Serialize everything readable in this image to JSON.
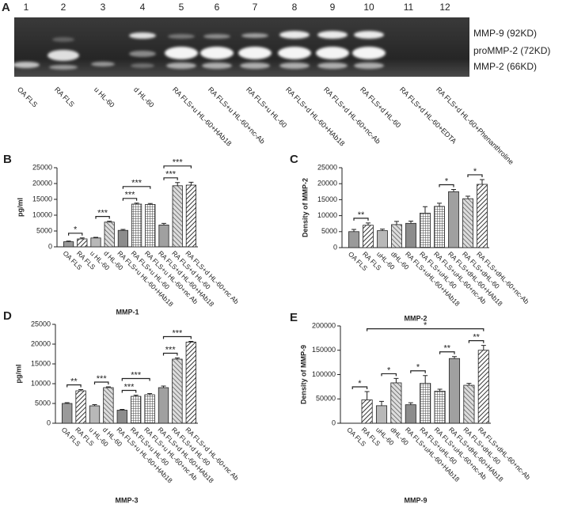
{
  "panel_a": {
    "label": "A",
    "lanes": [
      "1",
      "2",
      "3",
      "4",
      "5",
      "6",
      "7",
      "8",
      "9",
      "10",
      "11",
      "12"
    ],
    "bands": [
      "MMP-9 (92KD)",
      "proMMP-2 (72KD)",
      "MMP-2 (66KD)"
    ],
    "lane_labels": [
      "OA FLS",
      "RA FLS",
      "u HL-60",
      "d HL-60",
      "RA FLS+u HL-60+HAb18",
      "RA FLS+u HL-60+nc-Ab",
      "RA FLS+u HL-60",
      "RA FLS+d HL-60+HAb18",
      "RA FLS+d HL-60+nc-Ab",
      "RA FLS+d HL-60",
      "RA FLS+d HL-60+EDTA",
      "RA FLS+d HL-60+Phenanthroline"
    ]
  },
  "chart_data": [
    {
      "type": "bar",
      "label": "B",
      "ylabel": "pg/ml",
      "xlabel": "MMP-1",
      "categories": [
        "OA FLS",
        "RA FLS",
        "u HL-60",
        "d HL-60",
        "RA FLS+u HL-60+HAb18",
        "RA FLS+u HL-60",
        "RA FLS+u HL-60+nc Ab",
        "RA FLS+d HL-60+HAb18",
        "RA FLS+d HL-60",
        "RA FLS+d HL-60+nc Ab"
      ],
      "values": [
        1600,
        2500,
        2800,
        7800,
        5200,
        13500,
        13400,
        6900,
        19300,
        19500
      ],
      "errors": [
        200,
        300,
        200,
        300,
        300,
        300,
        300,
        500,
        1000,
        900
      ],
      "ylim": [
        0,
        25000
      ],
      "yticks": [
        0,
        5000,
        10000,
        15000,
        20000,
        25000
      ],
      "annotations": [
        {
          "text": "*",
          "from": 0,
          "to": 1
        },
        {
          "text": "***",
          "from": 2,
          "to": 3
        },
        {
          "text": "***",
          "from": 4,
          "to": 5
        },
        {
          "text": "***",
          "from": 4,
          "to": 6
        },
        {
          "text": "***",
          "from": 7,
          "to": 8
        },
        {
          "text": "***",
          "from": 7,
          "to": 9
        }
      ]
    },
    {
      "type": "bar",
      "label": "C",
      "ylabel": "Density of MMP-2",
      "xlabel": "MMP-2",
      "categories": [
        "OA FLS",
        "RA FLS",
        "uHL-60",
        "dHL-60",
        "RA FLS+uHL-60+HAb18",
        "RA FLS+uHL-60",
        "RA FLS+uHL-60+nc-Ab",
        "RA FLS+dHL-60+HAb18",
        "RA FLS+dHL-60",
        "RA FLS+dHL-60+nc-Ab"
      ],
      "values": [
        5000,
        7000,
        5300,
        7200,
        7600,
        10800,
        12900,
        17500,
        15300,
        19800
      ],
      "errors": [
        700,
        700,
        500,
        1000,
        700,
        2000,
        1000,
        700,
        800,
        1500
      ],
      "ylim": [
        0,
        25000
      ],
      "yticks": [
        0,
        5000,
        10000,
        15000,
        20000,
        25000
      ],
      "annotations": [
        {
          "text": "**",
          "from": 0,
          "to": 1
        },
        {
          "text": "*",
          "from": 6,
          "to": 7
        },
        {
          "text": "*",
          "from": 8,
          "to": 9
        }
      ]
    },
    {
      "type": "bar",
      "label": "D",
      "ylabel": "pg/ml",
      "xlabel": "MMP-3",
      "categories": [
        "OA FLS",
        "RA FLS",
        "u HL-60",
        "d HL-60",
        "RA FLS+u HL-60+HAb18",
        "RA FLS+u HL-60",
        "RA FLS+u HL-60+nc Ab",
        "RA FLS+d HL-60+HAb18",
        "RA FLS+d HL-60",
        "RA FLS+d HL-60+nc Ab"
      ],
      "values": [
        5000,
        8200,
        4400,
        9000,
        3300,
        6800,
        7200,
        9000,
        16200,
        20500
      ],
      "errors": [
        200,
        300,
        300,
        200,
        200,
        300,
        300,
        400,
        300,
        200
      ],
      "ylim": [
        0,
        25000
      ],
      "yticks": [
        0,
        5000,
        10000,
        15000,
        20000,
        25000
      ],
      "annotations": [
        {
          "text": "**",
          "from": 0,
          "to": 1
        },
        {
          "text": "***",
          "from": 2,
          "to": 3
        },
        {
          "text": "***",
          "from": 4,
          "to": 5
        },
        {
          "text": "***",
          "from": 4,
          "to": 6
        },
        {
          "text": "***",
          "from": 7,
          "to": 8
        },
        {
          "text": "***",
          "from": 7,
          "to": 9
        }
      ]
    },
    {
      "type": "bar",
      "label": "E",
      "ylabel": "Density of MMP-9",
      "xlabel": "MMP-9",
      "categories": [
        "OA FLS",
        "RA FLS",
        "uHL-60",
        "dHL-60",
        "RA FLS+uHL-60+HAb18",
        "RA FLS+uHL-60",
        "RA FLS+uHL-60+nc-Ab",
        "RA FLS+dHL-60+HAb18",
        "RA FLS+dHL-60",
        "RA FLS+dHL-60+nc-Ab"
      ],
      "values": [
        0,
        48000,
        36000,
        83000,
        38000,
        82000,
        66000,
        133000,
        78000,
        150000
      ],
      "errors": [
        0,
        17000,
        9000,
        9000,
        4000,
        16000,
        4000,
        4000,
        4000,
        10000
      ],
      "ylim": [
        0,
        200000
      ],
      "yticks": [
        0,
        50000,
        100000,
        150000,
        200000
      ],
      "annotations": [
        {
          "text": "*",
          "from": 0,
          "to": 1
        },
        {
          "text": "*",
          "from": 2,
          "to": 3
        },
        {
          "text": "*",
          "from": 4,
          "to": 5
        },
        {
          "text": "**",
          "from": 6,
          "to": 7
        },
        {
          "text": "**",
          "from": 8,
          "to": 9
        },
        {
          "text": "*",
          "from": 1,
          "to": 9
        }
      ]
    }
  ]
}
